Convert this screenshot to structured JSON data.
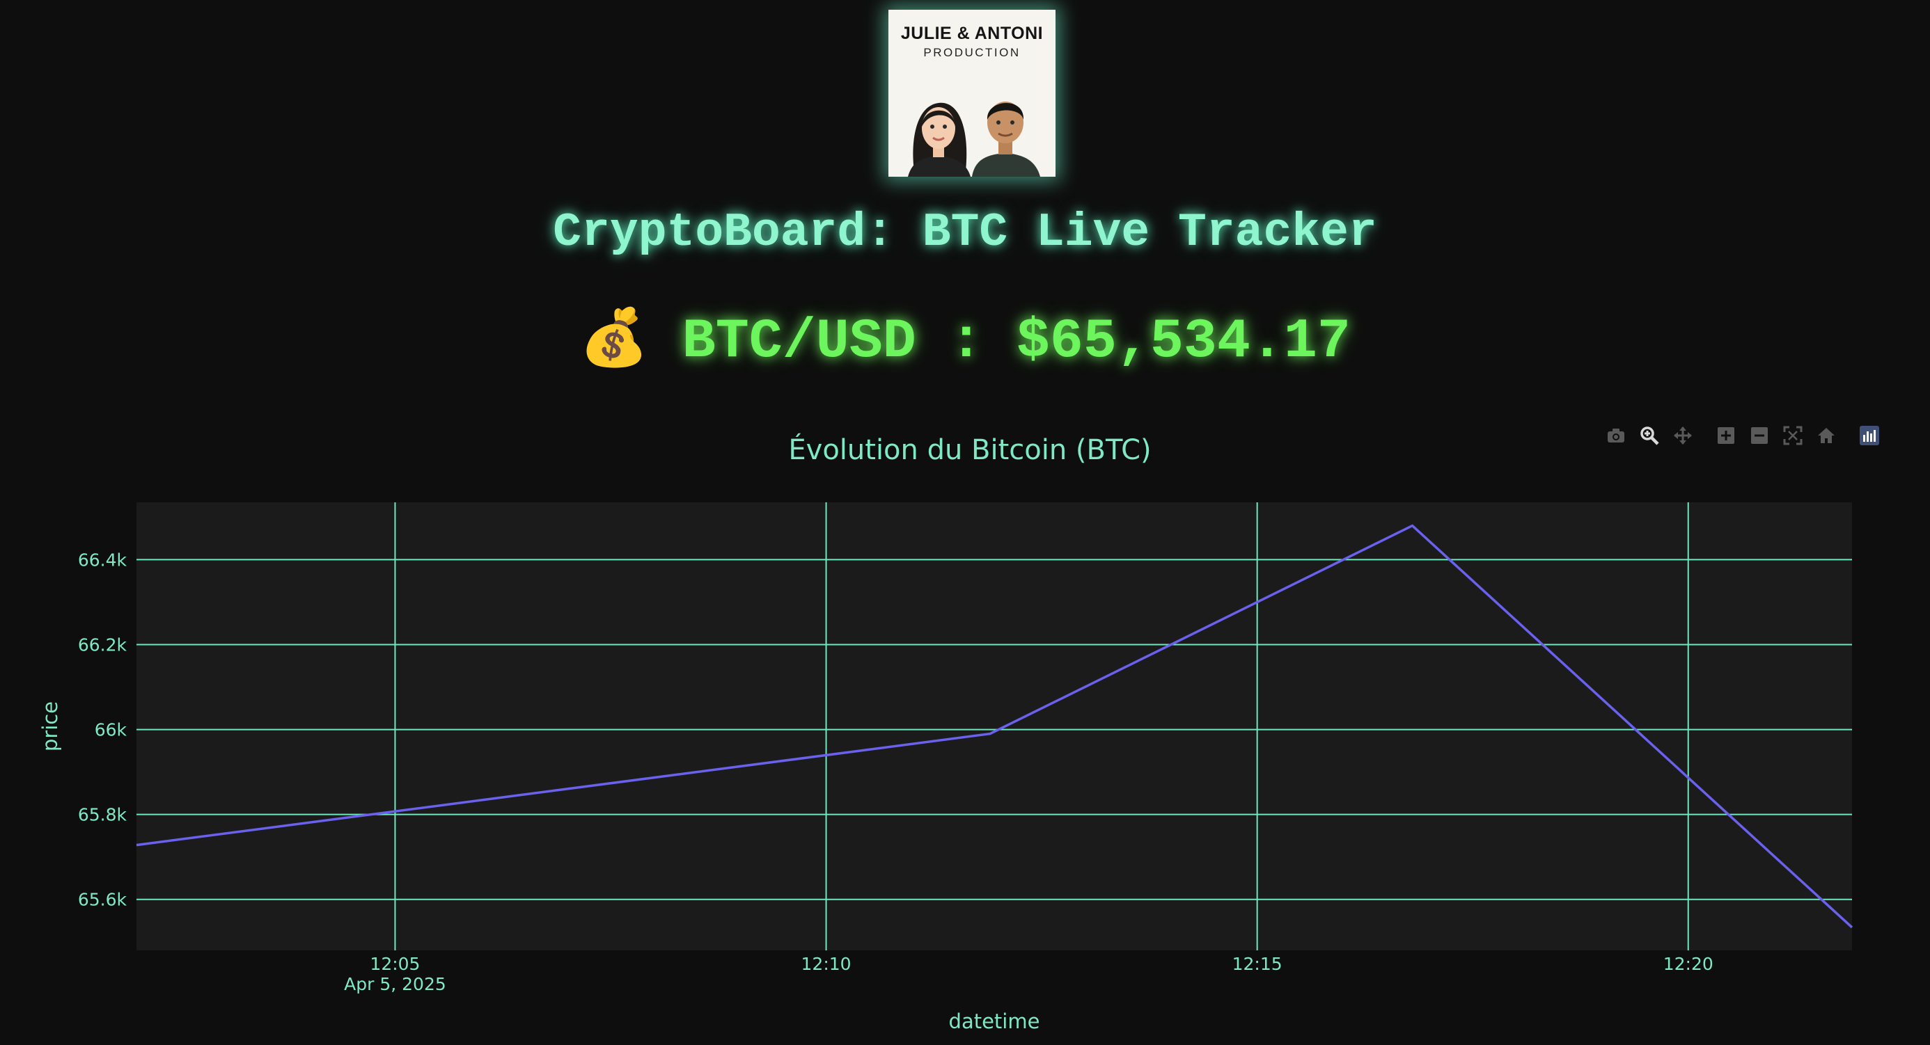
{
  "logo": {
    "title": "JULIE & ANTONI",
    "subtitle": "PRODUCTION"
  },
  "header": {
    "title": "CryptoBoard: BTC Live Tracker",
    "price_icon": "money-bag-icon",
    "price_emoji": "💰",
    "pair": "BTC/USD",
    "separator": ":",
    "price": "$65,534.17"
  },
  "modebar": {
    "buttons": [
      "camera-icon",
      "zoom-icon",
      "pan-icon",
      "zoom-in-icon",
      "zoom-out-icon",
      "autoscale-icon",
      "reset-axes-icon",
      "plotly-logo-icon"
    ]
  },
  "colors": {
    "background": "#0e0e0e",
    "plot_background": "#1b1b1b",
    "grid": "#6ee8bd",
    "line": "#6a62ee",
    "title": "#8ff5cf",
    "price": "#6cf55c"
  },
  "chart_data": {
    "type": "line",
    "title": "Évolution du Bitcoin (BTC)",
    "xlabel": "datetime",
    "ylabel": "price",
    "x_date_label": "Apr 5, 2025",
    "x_range_minutes": [
      2.0,
      21.9
    ],
    "x_ticks": [
      {
        "value": 5,
        "label": "12:05"
      },
      {
        "value": 10,
        "label": "12:10"
      },
      {
        "value": 15,
        "label": "12:15"
      },
      {
        "value": 20,
        "label": "12:20"
      }
    ],
    "ylim": [
      65480,
      66535
    ],
    "y_ticks": [
      {
        "value": 65600,
        "label": "65.6k"
      },
      {
        "value": 65800,
        "label": "65.8k"
      },
      {
        "value": 66000,
        "label": "66k"
      },
      {
        "value": 66200,
        "label": "66.2k"
      },
      {
        "value": 66400,
        "label": "66.4k"
      }
    ],
    "grid": true,
    "series": [
      {
        "name": "price",
        "x": [
          2.0,
          11.9,
          16.8,
          21.9
        ],
        "y": [
          65728,
          65990,
          66480,
          65534.17
        ]
      }
    ]
  }
}
